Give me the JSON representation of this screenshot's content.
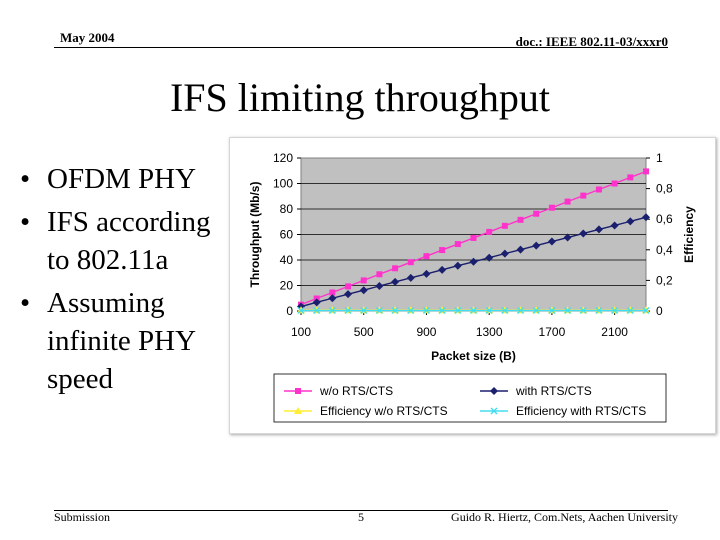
{
  "header": {
    "date": "May 2004",
    "doc_id": "doc.: IEEE 802.11-03/xxxr0"
  },
  "slide": {
    "title": "IFS limiting throughput",
    "bullets": [
      "OFDM PHY",
      "IFS according to 802.11a",
      "Assuming infinite PHY speed"
    ]
  },
  "footer": {
    "left": "Submission",
    "page": "5",
    "author": "Guido R. Hiertz, Com.Nets, Aachen University"
  },
  "colors": {
    "plot_bg": "#c0c0c0",
    "wo_rts": "#ff33cc",
    "with_rts": "#1a1f6e",
    "eff_wo": "#ffee33",
    "eff_with": "#44ddee"
  },
  "chart_data": {
    "type": "line",
    "xlabel": "Packet size (B)",
    "ylabel": "Throughput (Mb/s)",
    "y2label": "Efficiency",
    "xlim": [
      100,
      2300
    ],
    "ylim": [
      0,
      120
    ],
    "y2lim": [
      0,
      1
    ],
    "x_ticks": [
      100,
      500,
      900,
      1300,
      1700,
      2100
    ],
    "y_ticks": [
      0,
      20,
      40,
      60,
      80,
      100,
      120
    ],
    "y2_ticks": [
      "0",
      "0,2",
      "0,4",
      "0,6",
      "0,8",
      "1"
    ],
    "legend_position": "bottom",
    "x": [
      100,
      200,
      300,
      400,
      500,
      600,
      700,
      800,
      900,
      1000,
      1100,
      1200,
      1300,
      1400,
      1500,
      1600,
      1700,
      1800,
      1900,
      2000,
      2100,
      2200,
      2300
    ],
    "series": [
      {
        "name": "w/o RTS/CTS",
        "axis": "y",
        "marker": "square",
        "values": [
          5,
          9.8,
          14.5,
          19.3,
          24,
          28.8,
          33.5,
          38.3,
          43,
          47.8,
          52.5,
          57.3,
          62,
          66.8,
          71.5,
          76.3,
          81,
          85.8,
          90.5,
          95.3,
          100,
          104.8,
          109.5
        ]
      },
      {
        "name": "with RTS/CTS",
        "axis": "y",
        "marker": "diamond",
        "values": [
          3.5,
          6.8,
          10,
          13.2,
          16.3,
          19.6,
          22.8,
          26,
          29.1,
          32.3,
          35.5,
          38.6,
          41.8,
          45,
          48.1,
          51.3,
          54.5,
          57.6,
          60.8,
          64,
          67.1,
          70.3,
          73.5
        ]
      },
      {
        "name": "Efficiency w/o RTS/CTS",
        "axis": "y2",
        "marker": "triangle",
        "values": [
          0.005,
          0.005,
          0.005,
          0.005,
          0.005,
          0.005,
          0.005,
          0.005,
          0.005,
          0.005,
          0.005,
          0.005,
          0.005,
          0.005,
          0.005,
          0.005,
          0.005,
          0.005,
          0.005,
          0.005,
          0.005,
          0.005,
          0.005
        ]
      },
      {
        "name": "Efficiency with RTS/CTS",
        "axis": "y2",
        "marker": "x",
        "values": [
          0.003,
          0.003,
          0.003,
          0.003,
          0.003,
          0.003,
          0.003,
          0.003,
          0.003,
          0.003,
          0.003,
          0.003,
          0.003,
          0.003,
          0.003,
          0.003,
          0.003,
          0.003,
          0.003,
          0.003,
          0.003,
          0.003,
          0.003
        ]
      }
    ]
  }
}
